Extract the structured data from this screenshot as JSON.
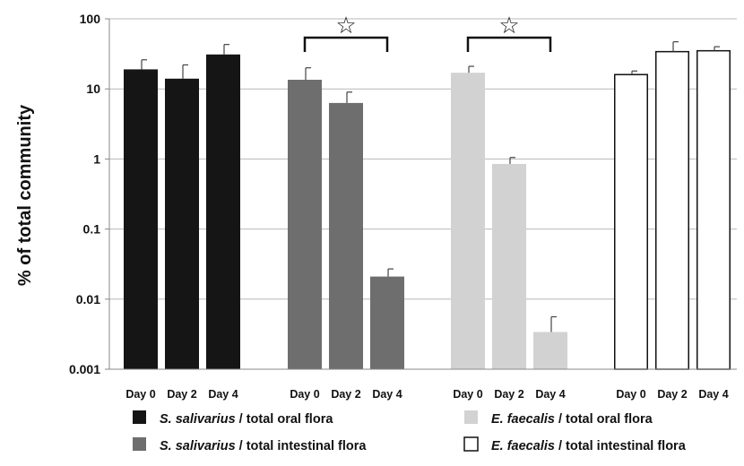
{
  "chart_data": {
    "type": "bar",
    "title": "",
    "xlabel": "",
    "ylabel": "% of total community",
    "yscale": "log",
    "ylim": [
      0.001,
      100
    ],
    "yticks": [
      {
        "value": 100,
        "label": "100"
      },
      {
        "value": 10,
        "label": "10"
      },
      {
        "value": 1,
        "label": "1"
      },
      {
        "value": 0.1,
        "label": "0.1"
      },
      {
        "value": 0.01,
        "label": "0.01"
      },
      {
        "value": 0.001,
        "label": "0.001"
      }
    ],
    "grid": "horizontal",
    "categories": [
      "Day 0",
      "Day 2",
      "Day 4"
    ],
    "series": [
      {
        "species": "S. salivarius",
        "rest": " / total oral flora",
        "color": "#151515",
        "edge": "#151515",
        "values": [
          19,
          14,
          31
        ],
        "errors": [
          26,
          22,
          43
        ]
      },
      {
        "species": "S. salivarius",
        "rest": " / total intestinal flora",
        "color": "#6e6e6e",
        "edge": "#6e6e6e",
        "values": [
          13.5,
          6.3,
          0.021
        ],
        "errors": [
          20,
          9,
          0.027
        ]
      },
      {
        "species": "E. faecalis",
        "rest": " / total oral flora",
        "color": "#d2d2d2",
        "edge": "#d2d2d2",
        "values": [
          17,
          0.85,
          0.0034
        ],
        "errors": [
          21,
          1.05,
          0.0056
        ]
      },
      {
        "species": "E. faecalis",
        "rest": " / total intestinal flora",
        "color": "#ffffff",
        "edge": "#111111",
        "values": [
          16,
          34,
          35
        ],
        "errors": [
          18,
          47,
          40
        ]
      }
    ],
    "significance": [
      {
        "series_index": 1,
        "from": 0,
        "to": 2,
        "symbol": "☆"
      },
      {
        "series_index": 2,
        "from": 0,
        "to": 2,
        "symbol": "☆"
      }
    ],
    "legend_position": "bottom"
  }
}
